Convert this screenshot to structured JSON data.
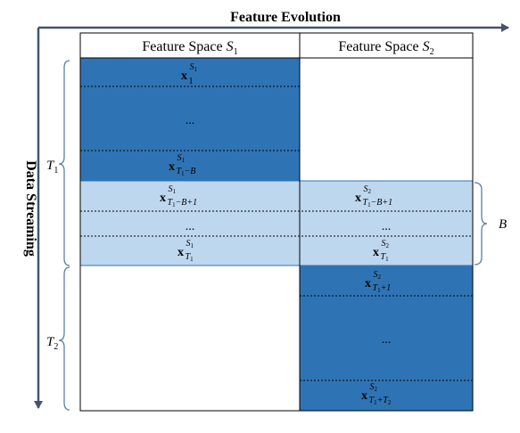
{
  "top_axis": {
    "label": "Feature Evolution"
  },
  "left_axis": {
    "label": "Data Streaming"
  },
  "columns": [
    {
      "prefix": "Feature Space ",
      "var": "S",
      "index": "1"
    },
    {
      "prefix": "Feature Space ",
      "var": "S",
      "index": "2"
    }
  ],
  "periods": [
    {
      "var": "T",
      "index": "1"
    },
    {
      "var": "T",
      "index": "2"
    }
  ],
  "overlap": {
    "label": "B"
  },
  "ellipsis": "...",
  "cells": {
    "s1_first": {
      "base": "x",
      "sup": "S",
      "sup_idx": "1",
      "sub": "1"
    },
    "s1_last": {
      "base": "x",
      "sup": "S",
      "sup_idx": "1",
      "sub": "T",
      "sub_idx": "1",
      "sub_tail": "−B"
    },
    "s1_ov1": {
      "base": "x",
      "sup": "S",
      "sup_idx": "1",
      "sub": "T",
      "sub_idx": "1",
      "sub_tail": "−B+1"
    },
    "s1_ov2": {
      "base": "x",
      "sup": "S",
      "sup_idx": "1",
      "sub": "T",
      "sub_idx": "1"
    },
    "s2_ov1": {
      "base": "x",
      "sup": "S",
      "sup_idx": "2",
      "sub": "T",
      "sub_idx": "1",
      "sub_tail": "−B+1"
    },
    "s2_ov2": {
      "base": "x",
      "sup": "S",
      "sup_idx": "2",
      "sub": "T",
      "sub_idx": "1"
    },
    "s2_first": {
      "base": "x",
      "sup": "S",
      "sup_idx": "2",
      "sub": "T",
      "sub_idx": "1",
      "sub_tail": "+1"
    },
    "s2_last": {
      "base": "x",
      "sup": "S",
      "sup_idx": "2",
      "sub": "T",
      "sub_idx": "1",
      "sub_tail": "+T",
      "sub_tail_idx": "2"
    }
  },
  "colors": {
    "dark_block": "#2e74b5",
    "light_block": "#bdd7ee",
    "axis": "#44546a",
    "brace": "#5b7fa6",
    "grid": "#000000"
  }
}
